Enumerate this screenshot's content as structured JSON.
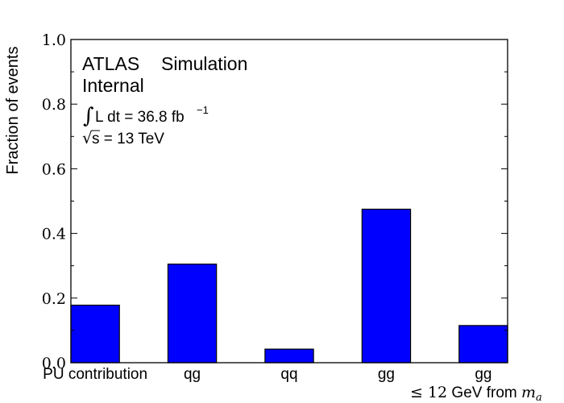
{
  "chart_data": {
    "type": "bar",
    "categories": [
      "PU contribution",
      "qg",
      "qq",
      "gg",
      "gg"
    ],
    "values": [
      0.178,
      0.305,
      0.042,
      0.475,
      0.115
    ],
    "ylabel": "Fraction of events",
    "ylim": [
      0,
      1.0
    ],
    "yticks": [
      "0.0",
      "0.2",
      "0.4",
      "0.6",
      "0.8",
      "1.0"
    ],
    "bar_color": "#0000ff",
    "grid": false,
    "annotation": {
      "experiment": "ATLAS",
      "label": "Simulation",
      "status": "Internal",
      "luminosity": "L dt = 36.8 fb",
      "luminosity_exp": "−1",
      "energy": "s = 13 TeV"
    },
    "xlabel_note": {
      "prefix": "≤ 12",
      "mid": " GeV from ",
      "suffix": "m",
      "sub": "a"
    }
  }
}
